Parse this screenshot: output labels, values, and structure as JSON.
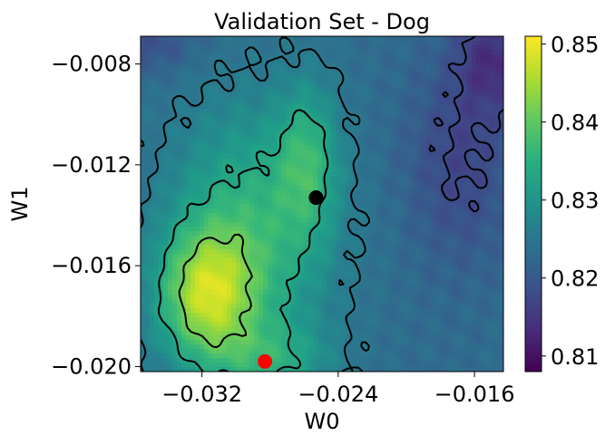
{
  "chart_data": {
    "type": "heatmap",
    "title": "Validation Set - Dog",
    "xlabel": "W0",
    "ylabel": "W1",
    "xlim": [
      -0.0356,
      -0.0143
    ],
    "ylim": [
      -0.0202,
      -0.0069
    ],
    "x_ticks": [
      {
        "value": -0.032,
        "label": "−0.032"
      },
      {
        "value": -0.024,
        "label": "−0.024"
      },
      {
        "value": -0.016,
        "label": "−0.016"
      }
    ],
    "y_ticks": [
      {
        "value": -0.008,
        "label": "−0.008"
      },
      {
        "value": -0.012,
        "label": "−0.012"
      },
      {
        "value": -0.016,
        "label": "−0.016"
      },
      {
        "value": -0.02,
        "label": "−0.020"
      }
    ],
    "colorbar": {
      "min": 0.808,
      "max": 0.851,
      "colormap": "viridis",
      "ticks": [
        {
          "value": 0.81,
          "label": "0.81"
        },
        {
          "value": 0.82,
          "label": "0.82"
        },
        {
          "value": 0.83,
          "label": "0.83"
        },
        {
          "value": 0.84,
          "label": "0.84"
        },
        {
          "value": 0.85,
          "label": "0.85"
        }
      ]
    },
    "peak_accuracy": 0.848,
    "markers": [
      {
        "name": "black",
        "x": -0.0253,
        "y": -0.0133,
        "color": "#000000"
      },
      {
        "name": "red",
        "x": -0.0283,
        "y": -0.0198,
        "color": "#ff0000"
      }
    ],
    "contour_color": "#000000"
  }
}
